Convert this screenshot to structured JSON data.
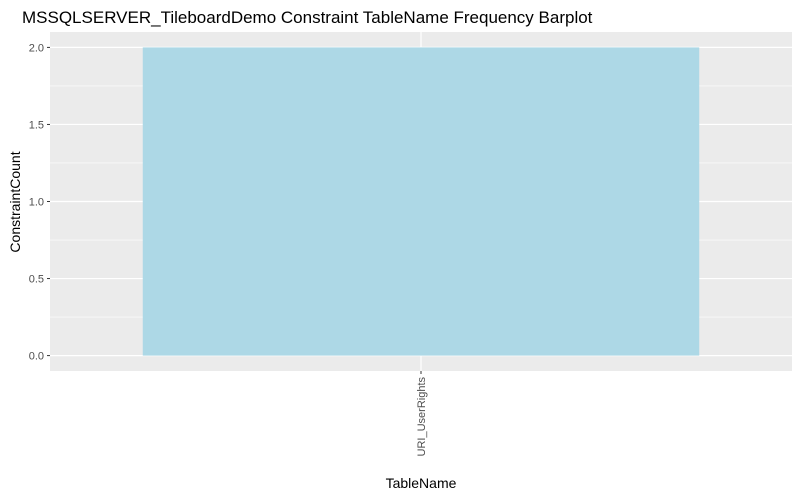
{
  "chart_data": {
    "type": "bar",
    "title": "MSSQLSERVER_TileboardDemo Constraint TableName Frequency Barplot",
    "xlabel": "TableName",
    "ylabel": "ConstraintCount",
    "categories": [
      "URI_UserRights"
    ],
    "values": [
      2
    ],
    "ylim": [
      -0.1,
      2.1
    ],
    "yticks": [
      0.0,
      0.5,
      1.0,
      1.5,
      2.0
    ],
    "ytick_labels": [
      "0.0",
      "0.5",
      "1.0",
      "1.5",
      "2.0"
    ],
    "grid": true,
    "legend": "none",
    "colors": {
      "bar": "#ADD8E6",
      "panel": "#EBEBEB",
      "gridline": "#FFFFFF",
      "tick_text": "#4D4D4D",
      "axis_tick": "#333333",
      "text": "#000000"
    }
  }
}
